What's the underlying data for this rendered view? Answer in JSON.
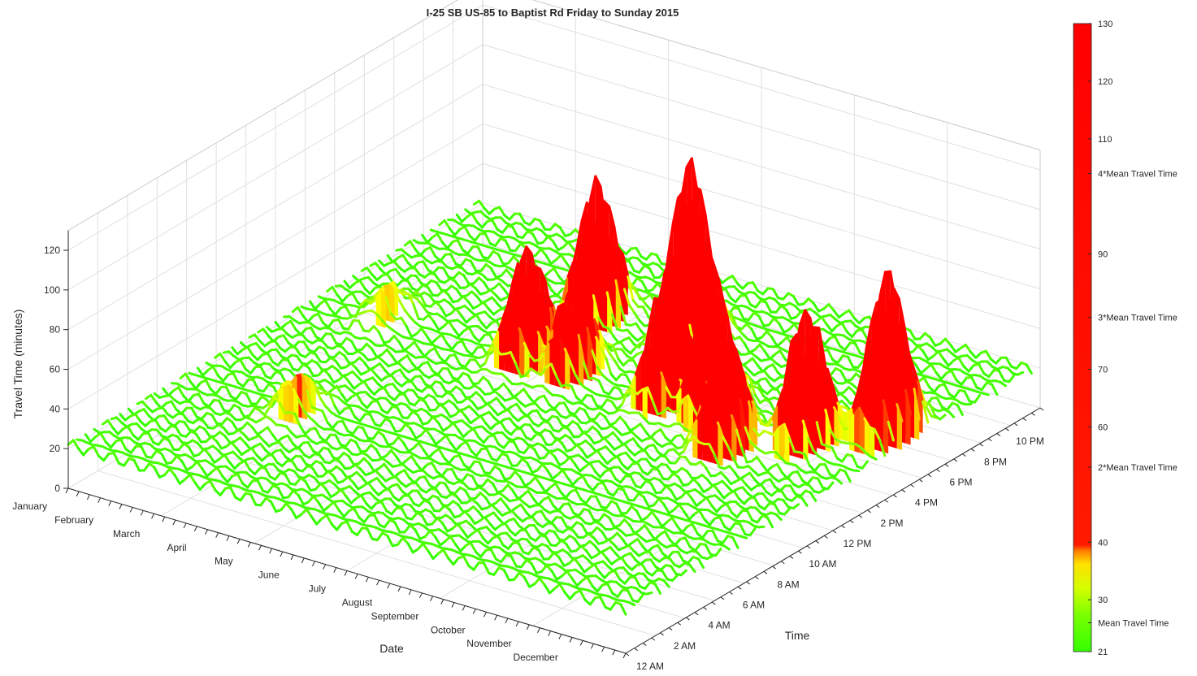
{
  "chart_data": {
    "type": "surface",
    "title": "I-25 SB US-85 to Baptist Rd  Friday to Sunday 2015",
    "xlabel": "Date",
    "ylabel": "Time",
    "zlabel": "Travel Time (minutes)",
    "zlim": [
      0,
      130
    ],
    "zticks": [
      "0",
      "20",
      "40",
      "60",
      "80",
      "100",
      "120"
    ],
    "zticks_values": [
      0,
      20,
      40,
      60,
      80,
      100,
      120
    ],
    "date_ticks": [
      "January",
      "February",
      "March",
      "April",
      "May",
      "June",
      "July",
      "August",
      "September",
      "October",
      "November",
      "December"
    ],
    "time_ticks": [
      "12 AM",
      "2 AM",
      "4 AM",
      "6 AM",
      "8 AM",
      "10 AM",
      "12 PM",
      "2 PM",
      "4 PM",
      "6 PM",
      "8 PM",
      "10 PM"
    ],
    "grid": true,
    "colorbar": {
      "min": 21,
      "max": 130,
      "ticks": [
        {
          "value": 130,
          "label": "130"
        },
        {
          "value": 120,
          "label": "120"
        },
        {
          "value": 110,
          "label": "110"
        },
        {
          "value": 104,
          "label": "4*Mean Travel Time"
        },
        {
          "value": 90,
          "label": "90"
        },
        {
          "value": 79,
          "label": "3*Mean Travel Time"
        },
        {
          "value": 70,
          "label": "70"
        },
        {
          "value": 60,
          "label": "60"
        },
        {
          "value": 53,
          "label": "2*Mean Travel Time"
        },
        {
          "value": 40,
          "label": "40"
        },
        {
          "value": 30,
          "label": "30"
        },
        {
          "value": 26,
          "label": "Mean Travel Time"
        },
        {
          "value": 21,
          "label": "21"
        }
      ],
      "colors": {
        "low": "#33ff00",
        "mid_low": "#b4ff00",
        "mid": "#ffff00",
        "mid_high": "#ff9900",
        "high": "#ff0000"
      }
    },
    "baseline_travel_time": 26,
    "peaks": [
      {
        "date": "May",
        "time": "2 PM",
        "value": 82
      },
      {
        "date": "May",
        "time": "6 PM",
        "value": 95
      },
      {
        "date": "July",
        "time": "6 PM",
        "value": 120
      },
      {
        "date": "June",
        "time": "2 PM",
        "value": 70
      },
      {
        "date": "August",
        "time": "2 PM",
        "value": 88
      },
      {
        "date": "September",
        "time": "2 PM",
        "value": 90
      },
      {
        "date": "October",
        "time": "12 PM",
        "value": 82
      },
      {
        "date": "November",
        "time": "2 PM",
        "value": 92
      },
      {
        "date": "December",
        "time": "4 PM",
        "value": 110
      },
      {
        "date": "March",
        "time": "6 AM",
        "value": 45
      },
      {
        "date": "February",
        "time": "2 PM",
        "value": 42
      }
    ]
  }
}
